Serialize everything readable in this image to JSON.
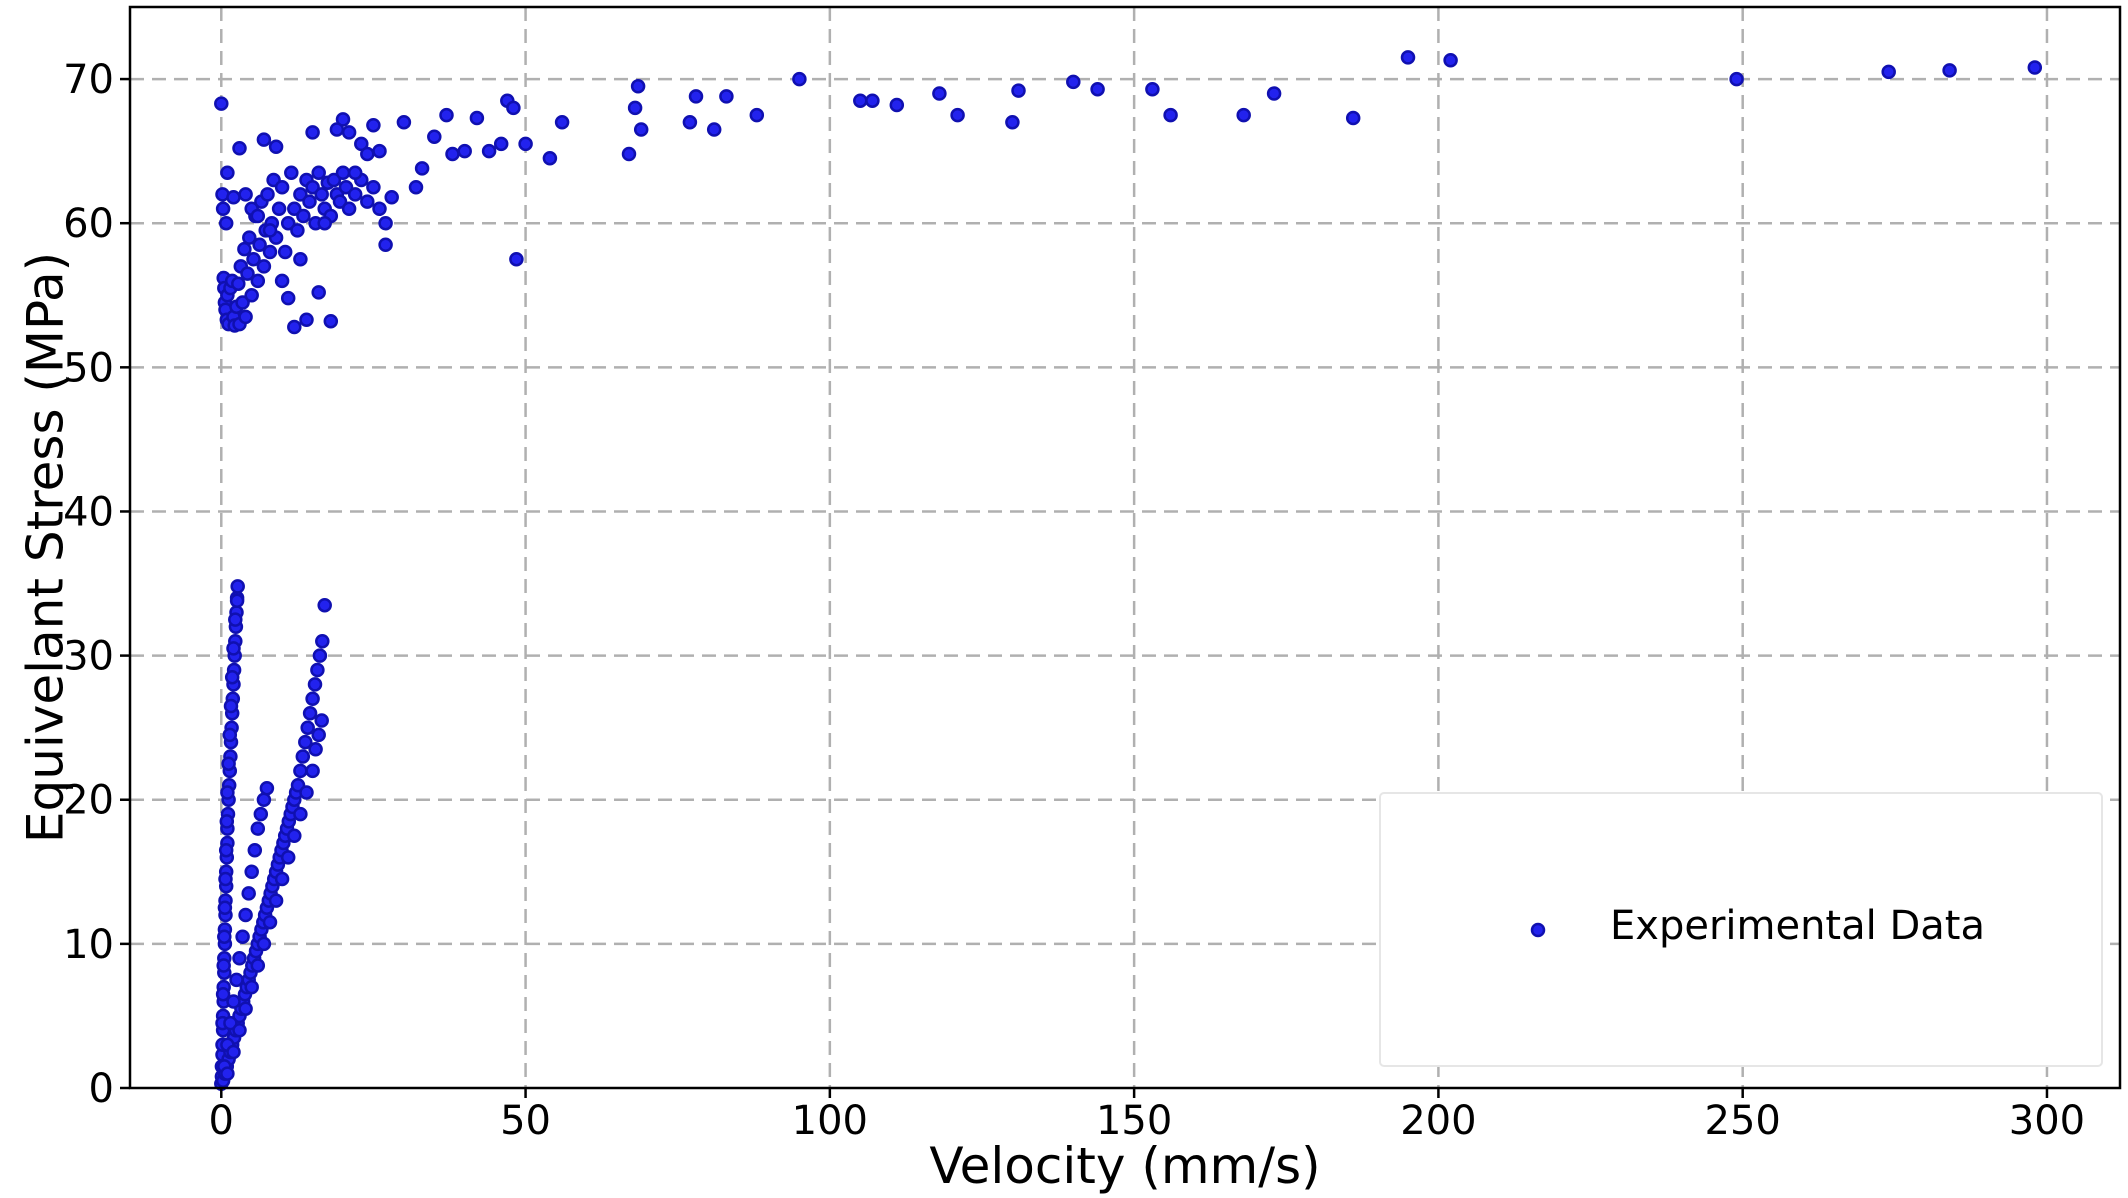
{
  "chart_data": {
    "type": "scatter",
    "title": "",
    "xlabel": "Velocity (mm/s)",
    "ylabel": "Equivelant Stress (MPa)",
    "xlim": [
      -15,
      312
    ],
    "ylim": [
      0,
      75
    ],
    "xticks": [
      0,
      50,
      100,
      150,
      200,
      250,
      300
    ],
    "yticks": [
      0,
      10,
      20,
      30,
      40,
      50,
      60,
      70
    ],
    "grid": true,
    "legend_position": "lower-right",
    "color": "#2222ee",
    "series": [
      {
        "name": "Experimental Data",
        "points": [
          [
            0.0,
            0.3
          ],
          [
            0.1,
            0.8
          ],
          [
            0.1,
            1.5
          ],
          [
            0.2,
            2.3
          ],
          [
            0.2,
            3.0
          ],
          [
            0.3,
            4.0
          ],
          [
            0.3,
            5.0
          ],
          [
            0.4,
            6.0
          ],
          [
            0.4,
            7.0
          ],
          [
            0.5,
            8.0
          ],
          [
            0.5,
            9.0
          ],
          [
            0.6,
            10.0
          ],
          [
            0.6,
            11.0
          ],
          [
            0.7,
            12.0
          ],
          [
            0.7,
            13.0
          ],
          [
            0.8,
            14.0
          ],
          [
            0.8,
            15.0
          ],
          [
            0.9,
            16.0
          ],
          [
            1.0,
            17.0
          ],
          [
            1.0,
            18.0
          ],
          [
            1.1,
            19.0
          ],
          [
            1.2,
            20.0
          ],
          [
            1.3,
            21.0
          ],
          [
            1.4,
            22.0
          ],
          [
            1.5,
            23.0
          ],
          [
            1.6,
            24.0
          ],
          [
            1.7,
            25.0
          ],
          [
            1.8,
            26.0
          ],
          [
            1.9,
            27.0
          ],
          [
            2.0,
            28.0
          ],
          [
            2.1,
            29.0
          ],
          [
            2.2,
            30.0
          ],
          [
            2.3,
            31.0
          ],
          [
            2.4,
            32.0
          ],
          [
            2.5,
            33.0
          ],
          [
            2.6,
            34.0
          ],
          [
            2.7,
            34.8
          ],
          [
            0.2,
            4.5
          ],
          [
            0.3,
            6.5
          ],
          [
            0.4,
            8.5
          ],
          [
            0.5,
            10.5
          ],
          [
            0.6,
            12.5
          ],
          [
            0.7,
            14.5
          ],
          [
            0.8,
            16.5
          ],
          [
            0.9,
            18.5
          ],
          [
            1.0,
            20.5
          ],
          [
            1.2,
            22.5
          ],
          [
            1.4,
            24.5
          ],
          [
            1.6,
            26.5
          ],
          [
            1.8,
            28.5
          ],
          [
            2.0,
            30.5
          ],
          [
            2.3,
            32.5
          ],
          [
            2.6,
            33.8
          ],
          [
            0.3,
            0.5
          ],
          [
            0.6,
            1.0
          ],
          [
            0.9,
            1.5
          ],
          [
            1.2,
            2.0
          ],
          [
            1.5,
            2.5
          ],
          [
            1.8,
            3.0
          ],
          [
            2.1,
            3.5
          ],
          [
            2.4,
            4.0
          ],
          [
            2.7,
            4.5
          ],
          [
            3.0,
            5.0
          ],
          [
            3.3,
            5.5
          ],
          [
            3.6,
            6.0
          ],
          [
            3.9,
            6.5
          ],
          [
            4.2,
            7.0
          ],
          [
            4.5,
            7.5
          ],
          [
            4.8,
            8.0
          ],
          [
            5.1,
            8.5
          ],
          [
            5.4,
            9.0
          ],
          [
            5.7,
            9.5
          ],
          [
            6.0,
            10.0
          ],
          [
            6.3,
            10.5
          ],
          [
            6.6,
            11.0
          ],
          [
            6.9,
            11.5
          ],
          [
            7.2,
            12.0
          ],
          [
            7.5,
            12.5
          ],
          [
            7.8,
            13.0
          ],
          [
            8.1,
            13.5
          ],
          [
            8.4,
            14.0
          ],
          [
            8.7,
            14.5
          ],
          [
            9.0,
            15.0
          ],
          [
            9.3,
            15.5
          ],
          [
            9.6,
            16.0
          ],
          [
            9.9,
            16.5
          ],
          [
            10.2,
            17.0
          ],
          [
            10.5,
            17.5
          ],
          [
            10.8,
            18.0
          ],
          [
            11.1,
            18.5
          ],
          [
            11.4,
            19.0
          ],
          [
            11.7,
            19.5
          ],
          [
            12.0,
            20.0
          ],
          [
            12.3,
            20.5
          ],
          [
            12.6,
            21.0
          ],
          [
            13.0,
            22.0
          ],
          [
            13.4,
            23.0
          ],
          [
            13.8,
            24.0
          ],
          [
            14.2,
            25.0
          ],
          [
            14.6,
            26.0
          ],
          [
            15.0,
            27.0
          ],
          [
            15.4,
            28.0
          ],
          [
            15.8,
            29.0
          ],
          [
            16.2,
            30.0
          ],
          [
            16.6,
            31.0
          ],
          [
            17.0,
            33.5
          ],
          [
            0.5,
            1.5
          ],
          [
            1.0,
            3.0
          ],
          [
            1.5,
            4.5
          ],
          [
            2.0,
            6.0
          ],
          [
            2.5,
            7.5
          ],
          [
            3.0,
            9.0
          ],
          [
            3.5,
            10.5
          ],
          [
            4.0,
            12.0
          ],
          [
            4.5,
            13.5
          ],
          [
            5.0,
            15.0
          ],
          [
            5.5,
            16.5
          ],
          [
            6.0,
            18.0
          ],
          [
            6.5,
            19.0
          ],
          [
            7.0,
            20.0
          ],
          [
            7.5,
            20.8
          ],
          [
            1.0,
            1.0
          ],
          [
            2.0,
            2.5
          ],
          [
            3.0,
            4.0
          ],
          [
            4.0,
            5.5
          ],
          [
            5.0,
            7.0
          ],
          [
            6.0,
            8.5
          ],
          [
            7.0,
            10.0
          ],
          [
            8.0,
            11.5
          ],
          [
            9.0,
            13.0
          ],
          [
            10.0,
            14.5
          ],
          [
            11.0,
            16.0
          ],
          [
            12.0,
            17.5
          ],
          [
            13.0,
            19.0
          ],
          [
            14.0,
            20.5
          ],
          [
            15.0,
            22.0
          ],
          [
            15.5,
            23.5
          ],
          [
            16.0,
            24.5
          ],
          [
            16.5,
            25.5
          ],
          [
            0.0,
            68.3
          ],
          [
            0.2,
            62.0
          ],
          [
            0.3,
            61.0
          ],
          [
            0.4,
            56.2
          ],
          [
            0.5,
            55.5
          ],
          [
            0.6,
            54.5
          ],
          [
            0.7,
            54.0
          ],
          [
            0.8,
            60.0
          ],
          [
            0.9,
            53.3
          ],
          [
            1.0,
            55.0
          ],
          [
            1.2,
            53.0
          ],
          [
            1.5,
            55.5
          ],
          [
            1.8,
            56.0
          ],
          [
            2.0,
            53.5
          ],
          [
            2.2,
            52.9
          ],
          [
            2.5,
            54.2
          ],
          [
            2.8,
            55.8
          ],
          [
            3.0,
            53.0
          ],
          [
            3.2,
            57.0
          ],
          [
            3.5,
            54.5
          ],
          [
            3.8,
            58.2
          ],
          [
            4.0,
            53.5
          ],
          [
            4.3,
            56.5
          ],
          [
            4.6,
            59.0
          ],
          [
            5.0,
            55.0
          ],
          [
            5.3,
            57.5
          ],
          [
            5.6,
            60.5
          ],
          [
            6.0,
            56.0
          ],
          [
            6.3,
            58.5
          ],
          [
            6.6,
            61.5
          ],
          [
            7.0,
            57.0
          ],
          [
            7.3,
            59.5
          ],
          [
            7.6,
            62.0
          ],
          [
            8.0,
            58.0
          ],
          [
            8.3,
            60.0
          ],
          [
            8.6,
            63.0
          ],
          [
            9.0,
            59.0
          ],
          [
            9.5,
            61.0
          ],
          [
            10.0,
            62.5
          ],
          [
            10.5,
            58.0
          ],
          [
            11.0,
            60.0
          ],
          [
            11.5,
            63.5
          ],
          [
            12.0,
            61.0
          ],
          [
            12.5,
            59.5
          ],
          [
            13.0,
            62.0
          ],
          [
            13.5,
            60.5
          ],
          [
            14.0,
            63.0
          ],
          [
            14.5,
            61.5
          ],
          [
            15.0,
            62.5
          ],
          [
            15.5,
            60.0
          ],
          [
            16.0,
            63.5
          ],
          [
            16.5,
            62.0
          ],
          [
            17.0,
            61.0
          ],
          [
            17.5,
            62.8
          ],
          [
            18.0,
            60.5
          ],
          [
            18.5,
            63.0
          ],
          [
            19.0,
            62.0
          ],
          [
            19.5,
            61.5
          ],
          [
            20.0,
            63.5
          ],
          [
            20.5,
            62.5
          ],
          [
            21.0,
            61.0
          ],
          [
            22.0,
            62.0
          ],
          [
            23.0,
            63.0
          ],
          [
            24.0,
            61.5
          ],
          [
            25.0,
            62.5
          ],
          [
            26.0,
            61.0
          ],
          [
            27.0,
            60.0
          ],
          [
            1.0,
            63.5
          ],
          [
            2.0,
            61.8
          ],
          [
            3.0,
            65.2
          ],
          [
            4.0,
            62.0
          ],
          [
            5.0,
            61.0
          ],
          [
            6.0,
            60.5
          ],
          [
            7.0,
            65.8
          ],
          [
            8.0,
            59.5
          ],
          [
            9.0,
            65.3
          ],
          [
            10.0,
            56.0
          ],
          [
            11.0,
            54.8
          ],
          [
            12.0,
            52.8
          ],
          [
            13.0,
            57.5
          ],
          [
            14.0,
            53.3
          ],
          [
            15.0,
            66.3
          ],
          [
            16.0,
            55.2
          ],
          [
            17.0,
            60.0
          ],
          [
            18.0,
            53.2
          ],
          [
            19.0,
            66.5
          ],
          [
            20.0,
            67.2
          ],
          [
            21.0,
            66.3
          ],
          [
            22.0,
            63.5
          ],
          [
            23.0,
            65.5
          ],
          [
            24.0,
            64.8
          ],
          [
            25.0,
            66.8
          ],
          [
            26.0,
            65.0
          ],
          [
            27.0,
            58.5
          ],
          [
            28.0,
            61.8
          ],
          [
            30.0,
            67.0
          ],
          [
            32.0,
            62.5
          ],
          [
            33.0,
            63.8
          ],
          [
            35.0,
            66.0
          ],
          [
            37.0,
            67.5
          ],
          [
            38.0,
            64.8
          ],
          [
            40.0,
            65.0
          ],
          [
            42.0,
            67.3
          ],
          [
            44.0,
            65.0
          ],
          [
            46.0,
            65.5
          ],
          [
            47.0,
            68.5
          ],
          [
            48.0,
            68.0
          ],
          [
            48.5,
            57.5
          ],
          [
            50.0,
            65.5
          ],
          [
            54.0,
            64.5
          ],
          [
            56.0,
            67.0
          ],
          [
            67.0,
            64.8
          ],
          [
            68.0,
            68.0
          ],
          [
            68.5,
            69.5
          ],
          [
            69.0,
            66.5
          ],
          [
            77.0,
            67.0
          ],
          [
            78.0,
            68.8
          ],
          [
            81.0,
            66.5
          ],
          [
            83.0,
            68.8
          ],
          [
            88.0,
            67.5
          ],
          [
            95.0,
            70.0
          ],
          [
            105.0,
            68.5
          ],
          [
            107.0,
            68.5
          ],
          [
            111.0,
            68.2
          ],
          [
            118.0,
            69.0
          ],
          [
            121.0,
            67.5
          ],
          [
            130.0,
            67.0
          ],
          [
            131.0,
            69.2
          ],
          [
            140.0,
            69.8
          ],
          [
            144.0,
            69.3
          ],
          [
            153.0,
            69.3
          ],
          [
            156.0,
            67.5
          ],
          [
            168.0,
            67.5
          ],
          [
            173.0,
            69.0
          ],
          [
            186.0,
            67.3
          ],
          [
            195.0,
            71.5
          ],
          [
            202.0,
            71.3
          ],
          [
            249.0,
            70.0
          ],
          [
            274.0,
            70.5
          ],
          [
            284.0,
            70.6
          ],
          [
            298.0,
            70.8
          ]
        ]
      }
    ]
  }
}
